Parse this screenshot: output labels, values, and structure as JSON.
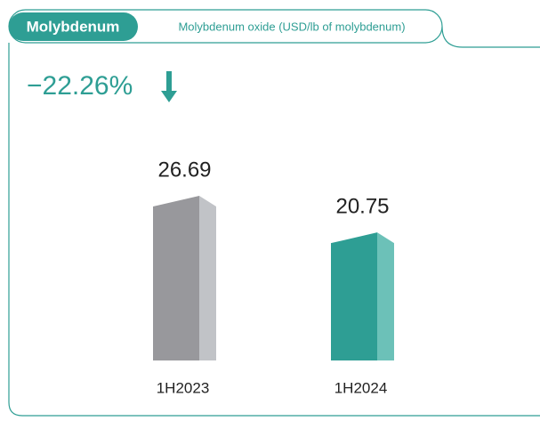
{
  "chart_data": {
    "type": "bar3d",
    "title": "Molybdenum",
    "subtitle": "Molybdenum oxide (USD/lb of molybdenum)",
    "annotation": "−22.26%",
    "categories": [
      "1H2023",
      "1H2024"
    ],
    "values": [
      26.69,
      20.75
    ],
    "colors": [
      "#98989c",
      "#2e9e94"
    ],
    "side_colors": [
      "#c1c3c7",
      "#6cc1b8"
    ]
  }
}
